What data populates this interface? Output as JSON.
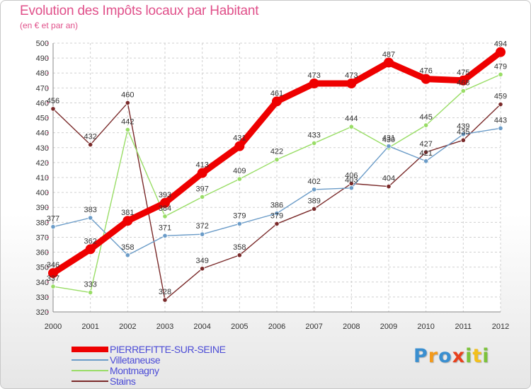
{
  "chart_data": {
    "type": "line",
    "title": "Evolution des Impôts locaux par Habitant",
    "subtitle": "(en € et par an)",
    "xlabel": "",
    "ylabel": "",
    "categories": [
      "2000",
      "2001",
      "2002",
      "2003",
      "2004",
      "2005",
      "2006",
      "2007",
      "2008",
      "2009",
      "2010",
      "2011",
      "2012"
    ],
    "ylim": [
      320,
      500
    ],
    "yticks": [
      320,
      330,
      340,
      350,
      360,
      370,
      380,
      390,
      400,
      410,
      420,
      430,
      440,
      450,
      460,
      470,
      480,
      490,
      500
    ],
    "grid": true,
    "series": [
      {
        "name": "PIERREFITTE-SUR-SEINE",
        "color": "#ee0000",
        "values": [
          346,
          362,
          381,
          393,
          413,
          431,
          461,
          473,
          473,
          487,
          476,
          475,
          494
        ],
        "labels": [
          "346",
          "362",
          "381",
          "393",
          "413",
          "431",
          "461",
          "473",
          "473",
          "487",
          "476",
          "475",
          "494"
        ]
      },
      {
        "name": "Villetaneuse",
        "color": "#6b9cc8",
        "values": [
          377,
          383,
          358,
          371,
          372,
          379,
          386,
          402,
          403,
          431,
          421,
          439,
          443
        ],
        "labels": [
          "377",
          "383",
          "358",
          "371",
          "372",
          "379",
          "386",
          "402",
          "403",
          "431",
          "421",
          "439",
          "443"
        ]
      },
      {
        "name": "Montmagny",
        "color": "#99dd66",
        "values": [
          337,
          333,
          442,
          384,
          397,
          409,
          422,
          433,
          444,
          430,
          445,
          468,
          479
        ],
        "labels": [
          "337",
          "333",
          "442",
          "384",
          "397",
          "409",
          "422",
          "433",
          "444",
          "430",
          "445",
          "468",
          "479"
        ]
      },
      {
        "name": "Stains",
        "color": "#7a2a2a",
        "values": [
          456,
          432,
          460,
          328,
          349,
          358,
          379,
          389,
          406,
          404,
          427,
          435,
          459
        ],
        "labels": [
          "456",
          "432",
          "460",
          "328",
          "349",
          "358",
          "379",
          "389",
          "406",
          "404",
          "427",
          "435",
          "459"
        ]
      }
    ]
  },
  "logo": {
    "letters": [
      "P",
      "r",
      "o",
      "x",
      "i",
      "t",
      "i"
    ],
    "colors": [
      "#3a8fd0",
      "#f39a1c",
      "#3a8fd0",
      "#e8401c",
      "#7cc23a",
      "#f3c01c",
      "#7cc23a"
    ]
  }
}
